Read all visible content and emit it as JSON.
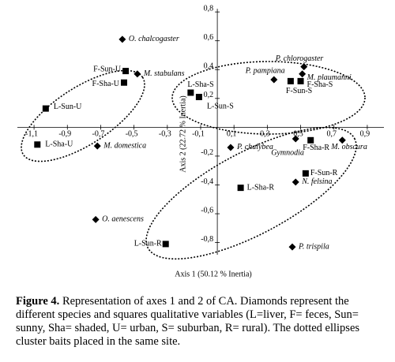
{
  "chart_data": {
    "type": "scatter",
    "xlabel": "Axis 1 (50.12 % Inertia)",
    "ylabel": "Axis 2 (22.72 % Inertia)",
    "xlim": [
      -1.2,
      1.0
    ],
    "ylim": [
      -0.95,
      0.85
    ],
    "xticks": [
      {
        "value": -1.1,
        "label": "-1,1"
      },
      {
        "value": -0.9,
        "label": "-0,9"
      },
      {
        "value": -0.7,
        "label": "-0,7"
      },
      {
        "value": -0.5,
        "label": "-0,5"
      },
      {
        "value": -0.3,
        "label": "-0,3"
      },
      {
        "value": -0.1,
        "label": "-0,1"
      },
      {
        "value": 0.1,
        "label": "0,1"
      },
      {
        "value": 0.3,
        "label": "0,3"
      },
      {
        "value": 0.5,
        "label": "0,5"
      },
      {
        "value": 0.7,
        "label": "0,7"
      },
      {
        "value": 0.9,
        "label": "0,9"
      }
    ],
    "yticks": [
      {
        "value": 0.8,
        "label": "0,8"
      },
      {
        "value": 0.6,
        "label": "0,6"
      },
      {
        "value": 0.4,
        "label": "0,4"
      },
      {
        "value": 0.2,
        "label": "0,2"
      },
      {
        "value": -0.2,
        "label": "-0,2"
      },
      {
        "value": -0.4,
        "label": "-0,4"
      },
      {
        "value": -0.6,
        "label": "-0,6"
      },
      {
        "value": -0.8,
        "label": "-0,8"
      }
    ],
    "series": [
      {
        "marker": "diamond",
        "italic": true,
        "color": "#000000",
        "labels": [
          "O. chalcogaster",
          "M. stabulans",
          "M. domestica",
          "O. aenescens",
          "P. chalybea",
          "P. pampiana",
          "P. chlorogaster",
          "M. plaumanni",
          "Gymnodia",
          "M. obscura",
          "N. felsina",
          "P. trispila"
        ],
        "x": [
          -0.57,
          -0.48,
          -0.72,
          -0.73,
          0.08,
          0.34,
          0.52,
          0.51,
          0.47,
          0.75,
          0.47,
          0.45
        ],
        "values": [
          0.61,
          0.37,
          -0.13,
          -0.64,
          -0.14,
          0.33,
          0.42,
          0.37,
          -0.08,
          -0.09,
          -0.38,
          -0.83
        ]
      },
      {
        "marker": "square",
        "italic": false,
        "color": "#000000",
        "labels": [
          "F-Sun-U",
          "F-Sha-U",
          "L-Sun-U",
          "L-Sha-U",
          "L-Sha-S",
          "L-Sun-S",
          "F-Sun-S",
          "F-Sha-S",
          "F-Sha-R",
          "F-Sun-R",
          "L-Sha-R",
          "L-Sun-R"
        ],
        "x": [
          -0.55,
          -0.56,
          -1.03,
          -1.08,
          -0.16,
          -0.11,
          0.44,
          0.5,
          0.56,
          0.53,
          0.14,
          -0.31
        ],
        "values": [
          0.39,
          0.31,
          0.13,
          -0.12,
          0.24,
          0.21,
          0.32,
          0.32,
          -0.09,
          -0.32,
          -0.42,
          -0.81
        ]
      }
    ]
  },
  "caption": {
    "label": "Figure 4.",
    "text": "Representation of axes 1 and 2 of CA. Diamonds represent the different species and squares qualitative variables (L=liver, F= feces, Sun= sunny, Sha= shaded, U= urban, S= suburban, R= rural). The dotted ellipses cluster baits placed in the same site."
  }
}
